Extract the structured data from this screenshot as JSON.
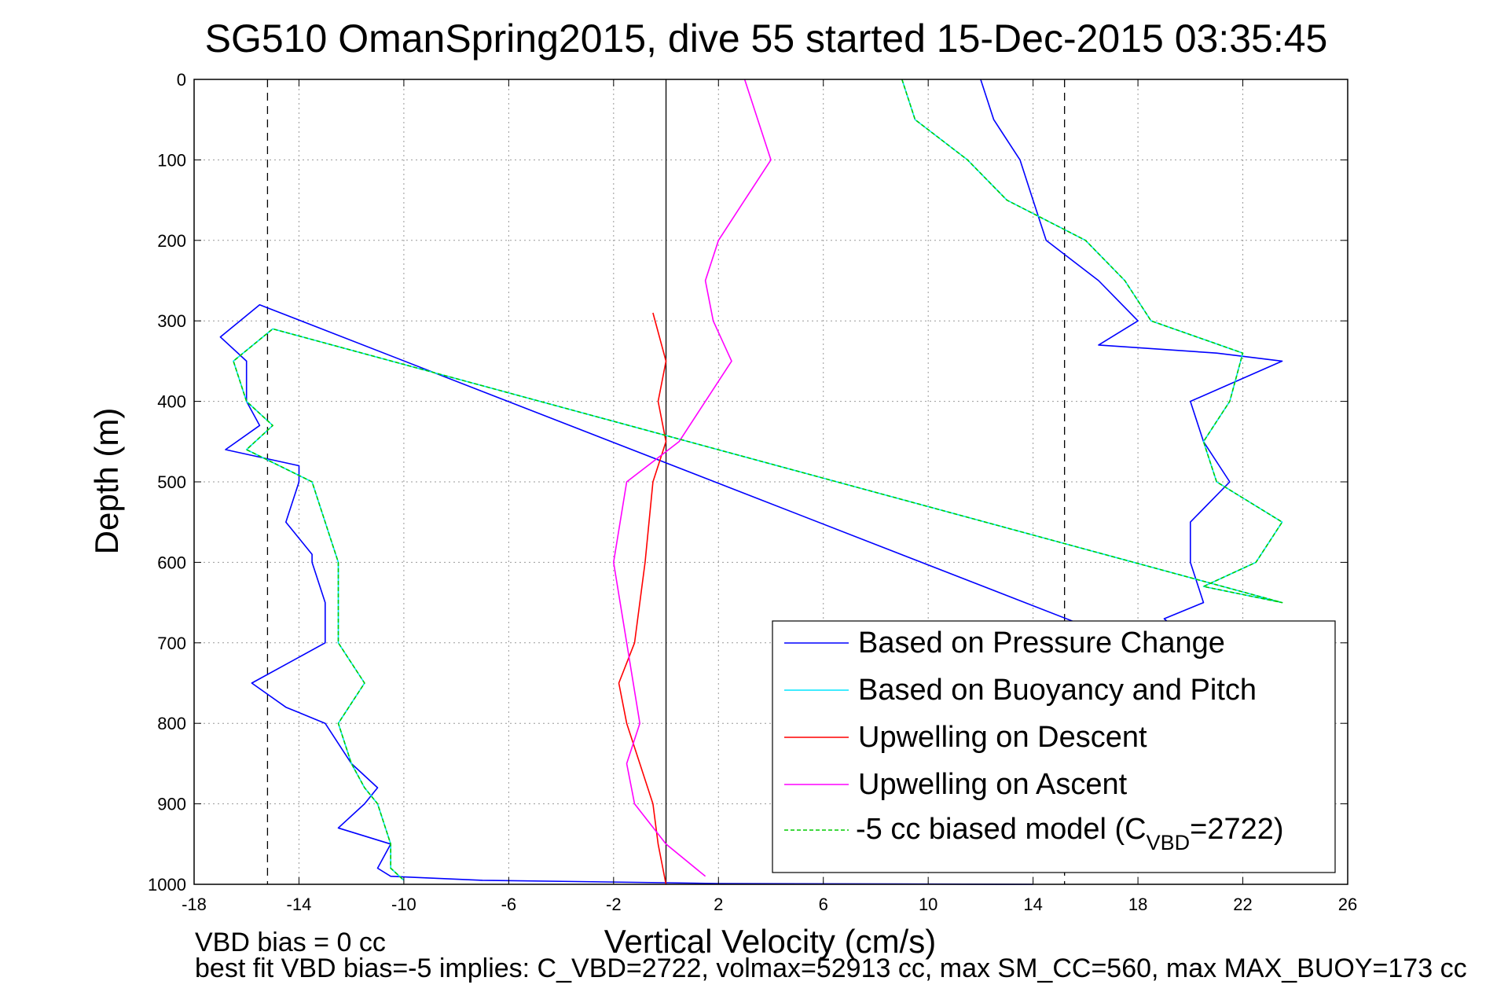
{
  "chart_data": {
    "type": "line",
    "title": "SG510 OmanSpring2015, dive 55 started 15-Dec-2015 03:35:45",
    "xlabel": "Vertical Velocity (cm/s)",
    "ylabel": "Depth (m)",
    "xlim": [
      -18,
      26
    ],
    "ylim": [
      0,
      1000
    ],
    "y_reversed": true,
    "x_ticks": [
      -18,
      -14,
      -10,
      -6,
      -2,
      2,
      6,
      10,
      14,
      18,
      22,
      26
    ],
    "y_ticks": [
      0,
      100,
      200,
      300,
      400,
      500,
      600,
      700,
      800,
      900,
      1000
    ],
    "grid": true,
    "legend_position": "bottom-right",
    "reference_lines": {
      "dashed_x": [
        -15.2,
        15.2
      ],
      "solid_x": [
        0
      ]
    },
    "series": [
      {
        "name": "Based on Pressure Change",
        "color": "#0000ff",
        "style": "solid",
        "x": [
          12,
          12.5,
          13.5,
          14,
          14.5,
          16.5,
          18,
          16.5,
          21,
          23.5,
          20,
          20.5,
          21.5,
          20,
          20,
          20.5,
          19,
          20,
          21.5,
          20,
          -15.5,
          -17,
          -16,
          -16,
          -15.5,
          -16.8,
          -14,
          -14,
          -14.5,
          -13.5,
          -13.5,
          -13,
          -13,
          -15.8,
          -14.5,
          -13,
          -12,
          -11,
          -11.5,
          -12.5,
          -10.5,
          -11,
          -10.5,
          -7,
          0,
          2,
          14
        ],
        "y": [
          0,
          50,
          100,
          150,
          200,
          250,
          300,
          330,
          340,
          350,
          400,
          450,
          500,
          550,
          600,
          650,
          670,
          700,
          720,
          730,
          280,
          320,
          350,
          400,
          430,
          460,
          480,
          500,
          550,
          590,
          600,
          650,
          700,
          750,
          780,
          800,
          850,
          880,
          900,
          930,
          950,
          980,
          990,
          995,
          998,
          999,
          1000
        ]
      },
      {
        "name": "Based on Buoyancy and Pitch",
        "color": "#00e5ff",
        "style": "solid",
        "x": [
          9,
          9.5,
          11.5,
          13,
          16,
          17.5,
          18.5,
          22,
          21.5,
          20.5,
          21,
          23.5,
          22.5,
          20.5,
          23.5,
          -15,
          -16.5,
          -16,
          -15,
          -16,
          -13.5,
          -12.5,
          -12.5,
          -12.5,
          -11.5,
          -12.5,
          -12,
          -11.5,
          -11,
          -10.5,
          -10.5,
          -10
        ],
        "y": [
          0,
          50,
          100,
          150,
          200,
          250,
          300,
          340,
          400,
          450,
          500,
          550,
          600,
          630,
          650,
          310,
          350,
          400,
          430,
          460,
          500,
          600,
          680,
          700,
          750,
          800,
          850,
          880,
          900,
          950,
          980,
          995
        ]
      },
      {
        "name": "Upwelling on Descent",
        "color": "#ff0000",
        "style": "solid",
        "x": [
          -0.5,
          0,
          -0.3,
          0,
          -0.5,
          -0.8,
          -1.2,
          -1.8,
          -1.5,
          -1,
          -0.5,
          -0.3,
          0
        ],
        "y": [
          290,
          350,
          400,
          450,
          500,
          600,
          700,
          750,
          800,
          850,
          900,
          950,
          1000
        ]
      },
      {
        "name": "Upwelling on Ascent",
        "color": "#ff00ff",
        "style": "solid",
        "x": [
          3,
          3.5,
          4,
          3,
          2,
          1.5,
          1.8,
          2.5,
          1.5,
          0.5,
          -1.5,
          -2,
          -1.5,
          -1,
          -1.5,
          -1.2,
          0,
          1.5
        ],
        "y": [
          0,
          50,
          100,
          150,
          200,
          250,
          300,
          350,
          400,
          450,
          500,
          600,
          700,
          800,
          850,
          900,
          950,
          990
        ]
      },
      {
        "name": "-5 cc biased model (C",
        "color": "#00cc00",
        "style": "dashed",
        "x": [
          9,
          9.5,
          11.5,
          13,
          16,
          17.5,
          18.5,
          22,
          21.5,
          20.5,
          21,
          23.5,
          22.5,
          20.5,
          23.5,
          -15,
          -16.5,
          -16,
          -15,
          -16,
          -13.5,
          -12.5,
          -12.5,
          -12.5,
          -11.5,
          -12.5,
          -12,
          -11.5,
          -11,
          -10.5,
          -10.5,
          -10
        ],
        "y": [
          0,
          50,
          100,
          150,
          200,
          250,
          300,
          340,
          400,
          450,
          500,
          550,
          600,
          630,
          650,
          310,
          350,
          400,
          430,
          460,
          500,
          600,
          680,
          700,
          750,
          800,
          850,
          880,
          900,
          950,
          980,
          995
        ]
      }
    ],
    "legend": {
      "green_sub": "VBD",
      "green_suffix": "=2722)"
    }
  },
  "footer": {
    "line1": "VBD bias = 0 cc",
    "line2": "best fit VBD bias=-5 implies: C_VBD=2722, volmax=52913 cc, max SM_CC=560, max MAX_BUOY=173 cc"
  }
}
